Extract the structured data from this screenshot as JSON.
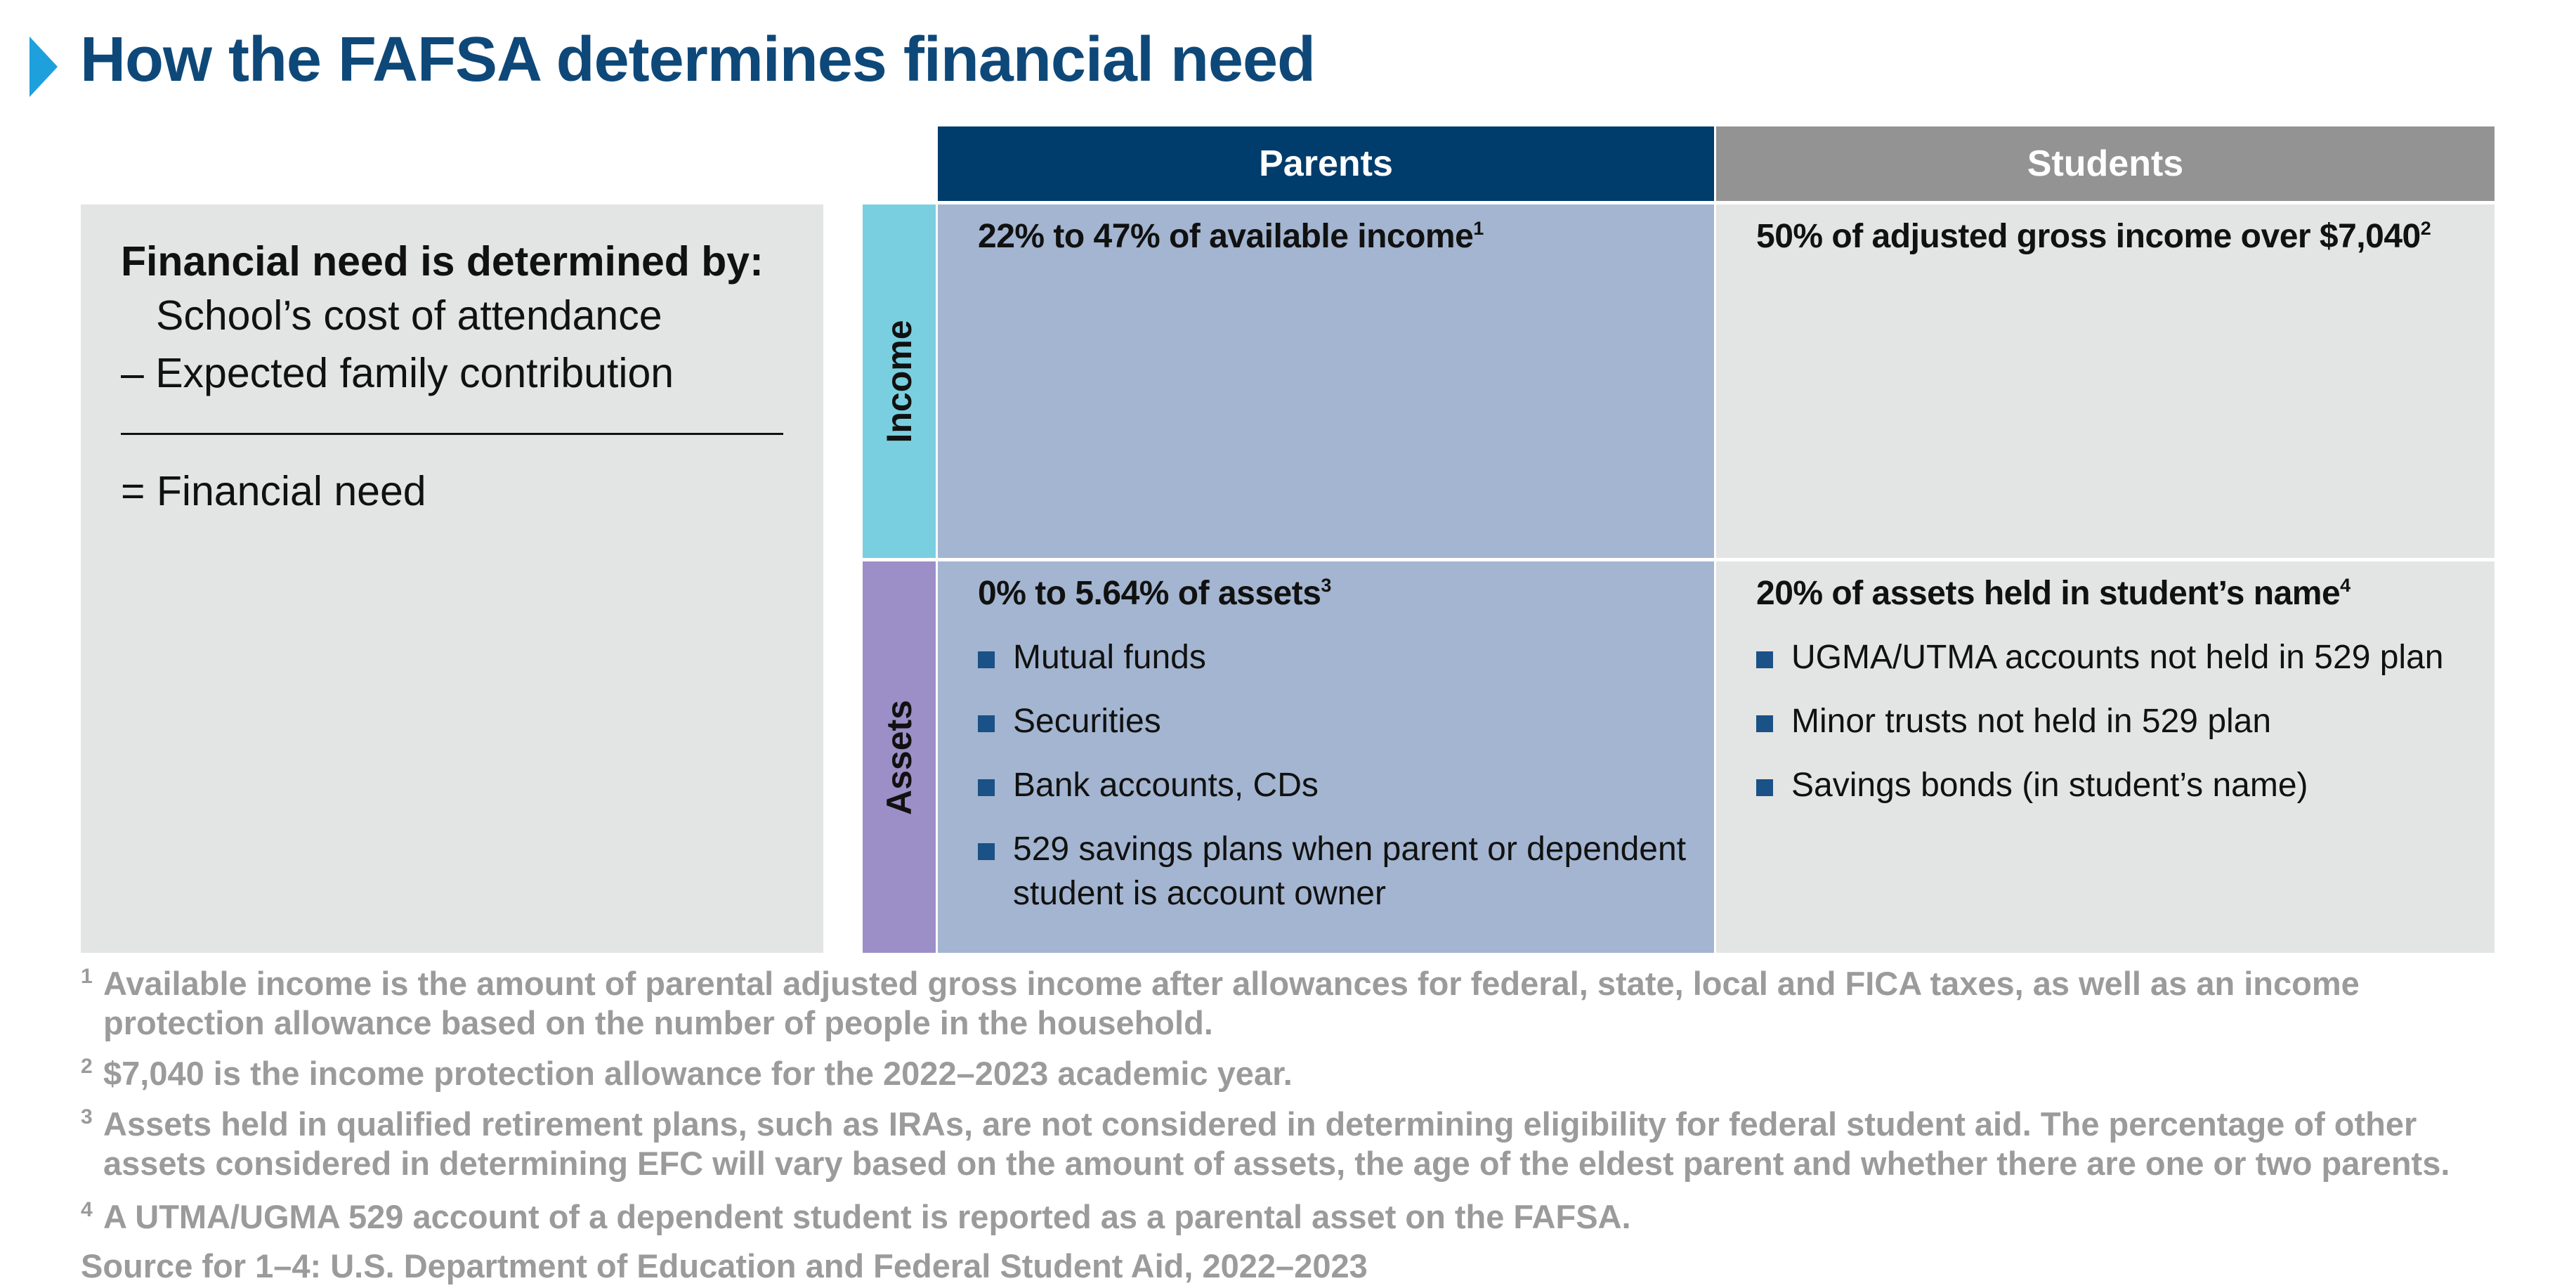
{
  "title": "How the FAFSA determines financial need",
  "formula": {
    "heading": "Financial need is determined by:",
    "line1": "School’s cost of attendance",
    "line2": "– Expected family contribution",
    "result": "= Financial need"
  },
  "table": {
    "headers": {
      "parents": "Parents",
      "students": "Students"
    },
    "rows": {
      "income": {
        "label": "Income"
      },
      "assets": {
        "label": "Assets"
      }
    },
    "cells": {
      "parents_income": {
        "title": "22% to 47% of available income",
        "sup": "1"
      },
      "students_income": {
        "title": "50% of adjusted gross income over $7,040",
        "sup": "2"
      },
      "parents_assets": {
        "title": "0% to 5.64% of assets",
        "sup": "3",
        "bullets": [
          "Mutual funds",
          "Securities",
          "Bank accounts, CDs",
          "529 savings plans when parent or dependent student is account owner"
        ]
      },
      "students_assets": {
        "title": "20% of assets held in student’s name",
        "sup": "4",
        "bullets": [
          "UGMA/UTMA accounts not held in 529 plan",
          "Minor trusts not held in 529 plan",
          "Savings bonds (in student’s name)"
        ]
      }
    }
  },
  "footnotes": [
    {
      "num": "1",
      "text": "Available income is the amount of parental adjusted gross income after allowances for federal, state, local and FICA taxes, as well as an income protection allowance based on the number of people in the household."
    },
    {
      "num": "2",
      "text": "$7,040 is the income protection allowance for the 2022–2023 academic year."
    },
    {
      "num": "3",
      "text": "Assets held in qualified retirement plans, such as IRAs, are not considered in determining eligibility for federal student aid. The percentage of other assets considered in determining EFC will vary based on the amount of assets, the age of the eldest parent and whether there are one or two parents."
    },
    {
      "num": "4",
      "text": "A UTMA/UGMA 529 account of a dependent student is reported as a parental asset on the FAFSA."
    }
  ],
  "source": "Source for 1–4: U.S. Department of Education and Federal Student Aid, 2022–2023",
  "colors": {
    "title": "#0e4879",
    "arrow": "#1ea0dd",
    "parents_header": "#003c6c",
    "students_header": "#939393",
    "income_label": "#79cfe0",
    "assets_label": "#9c8fc7",
    "parents_cell": "#a3b5d0",
    "students_cell": "#e3e4e4",
    "bullet": "#1a5186",
    "footnote_text": "#9b9b9b"
  },
  "icons": {
    "title_marker": "triangle-right-icon",
    "bullet": "square-bullet-icon"
  }
}
